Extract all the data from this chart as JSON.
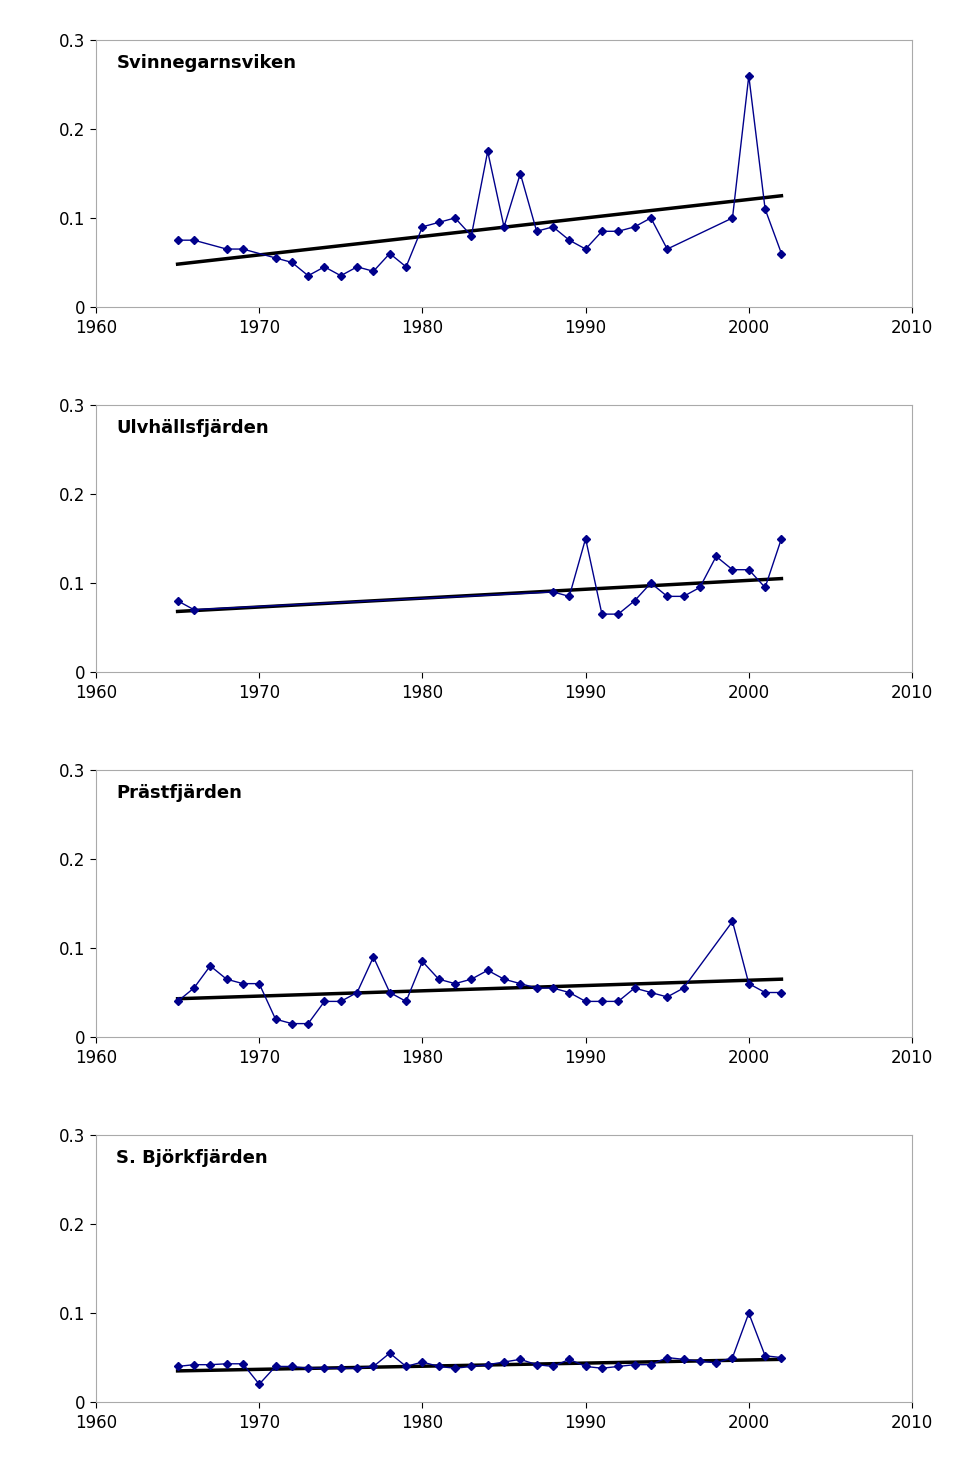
{
  "panels": [
    {
      "title": "Svinnegarnsviken",
      "years": [
        1965,
        1966,
        1968,
        1969,
        1971,
        1972,
        1973,
        1974,
        1975,
        1976,
        1977,
        1978,
        1979,
        1980,
        1981,
        1982,
        1983,
        1984,
        1985,
        1986,
        1987,
        1988,
        1989,
        1990,
        1991,
        1992,
        1993,
        1994,
        1995,
        1999,
        2000,
        2001,
        2002
      ],
      "values": [
        0.075,
        0.075,
        0.065,
        0.065,
        0.055,
        0.05,
        0.035,
        0.045,
        0.035,
        0.045,
        0.04,
        0.06,
        0.045,
        0.09,
        0.095,
        0.1,
        0.08,
        0.175,
        0.09,
        0.15,
        0.085,
        0.09,
        0.075,
        0.065,
        0.085,
        0.085,
        0.09,
        0.1,
        0.065,
        0.1,
        0.26,
        0.11,
        0.06
      ],
      "trend": [
        1965,
        2002
      ],
      "trend_values": [
        0.048,
        0.125
      ]
    },
    {
      "title": "Ulvhällsfjärden",
      "years": [
        1965,
        1966,
        1988,
        1989,
        1990,
        1991,
        1992,
        1993,
        1994,
        1995,
        1996,
        1997,
        1998,
        1999,
        2000,
        2001,
        2002
      ],
      "values": [
        0.08,
        0.07,
        0.09,
        0.085,
        0.15,
        0.065,
        0.065,
        0.08,
        0.1,
        0.085,
        0.085,
        0.095,
        0.13,
        0.115,
        0.115,
        0.095,
        0.15
      ],
      "trend": [
        1965,
        2002
      ],
      "trend_values": [
        0.068,
        0.105
      ]
    },
    {
      "title": "Prästfjärden",
      "years": [
        1965,
        1966,
        1967,
        1968,
        1969,
        1970,
        1971,
        1972,
        1973,
        1974,
        1975,
        1976,
        1977,
        1978,
        1979,
        1980,
        1981,
        1982,
        1983,
        1984,
        1985,
        1986,
        1987,
        1988,
        1989,
        1990,
        1991,
        1992,
        1993,
        1994,
        1995,
        1996,
        1999,
        2000,
        2001,
        2002
      ],
      "values": [
        0.04,
        0.055,
        0.08,
        0.065,
        0.06,
        0.06,
        0.02,
        0.015,
        0.015,
        0.04,
        0.04,
        0.05,
        0.09,
        0.05,
        0.04,
        0.085,
        0.065,
        0.06,
        0.065,
        0.075,
        0.065,
        0.06,
        0.055,
        0.055,
        0.05,
        0.04,
        0.04,
        0.04,
        0.055,
        0.05,
        0.045,
        0.055,
        0.13,
        0.06,
        0.05,
        0.05
      ],
      "trend": [
        1965,
        2002
      ],
      "trend_values": [
        0.043,
        0.065
      ]
    },
    {
      "title": "S. Björkfjärden",
      "years": [
        1965,
        1966,
        1967,
        1968,
        1969,
        1970,
        1971,
        1972,
        1973,
        1974,
        1975,
        1976,
        1977,
        1978,
        1979,
        1980,
        1981,
        1982,
        1983,
        1984,
        1985,
        1986,
        1987,
        1988,
        1989,
        1990,
        1991,
        1992,
        1993,
        1994,
        1995,
        1996,
        1997,
        1998,
        1999,
        2000,
        2001,
        2002
      ],
      "values": [
        0.04,
        0.042,
        0.042,
        0.043,
        0.043,
        0.02,
        0.04,
        0.04,
        0.038,
        0.038,
        0.038,
        0.038,
        0.04,
        0.055,
        0.04,
        0.045,
        0.04,
        0.038,
        0.04,
        0.042,
        0.045,
        0.048,
        0.042,
        0.04,
        0.048,
        0.04,
        0.038,
        0.04,
        0.042,
        0.042,
        0.05,
        0.048,
        0.046,
        0.044,
        0.05,
        0.1,
        0.052,
        0.05
      ],
      "trend": [
        1965,
        2002
      ],
      "trend_values": [
        0.035,
        0.048
      ]
    }
  ],
  "xlim": [
    1960,
    2010
  ],
  "ylim": [
    0,
    0.3
  ],
  "xticks": [
    1960,
    1970,
    1980,
    1990,
    2000,
    2010
  ],
  "yticks": [
    0,
    0.1,
    0.2,
    0.3
  ],
  "ytick_labels": [
    "0",
    "0.1",
    "0.2",
    "0.3"
  ],
  "data_color": "#00008B",
  "trend_color": "#000000",
  "marker": "D",
  "markersize": 4,
  "linewidth": 1.0,
  "trend_linewidth": 2.5,
  "title_fontsize": 13,
  "tick_fontsize": 12,
  "bg_color": "#ffffff",
  "figsize": [
    9.6,
    14.75
  ],
  "dpi": 100
}
